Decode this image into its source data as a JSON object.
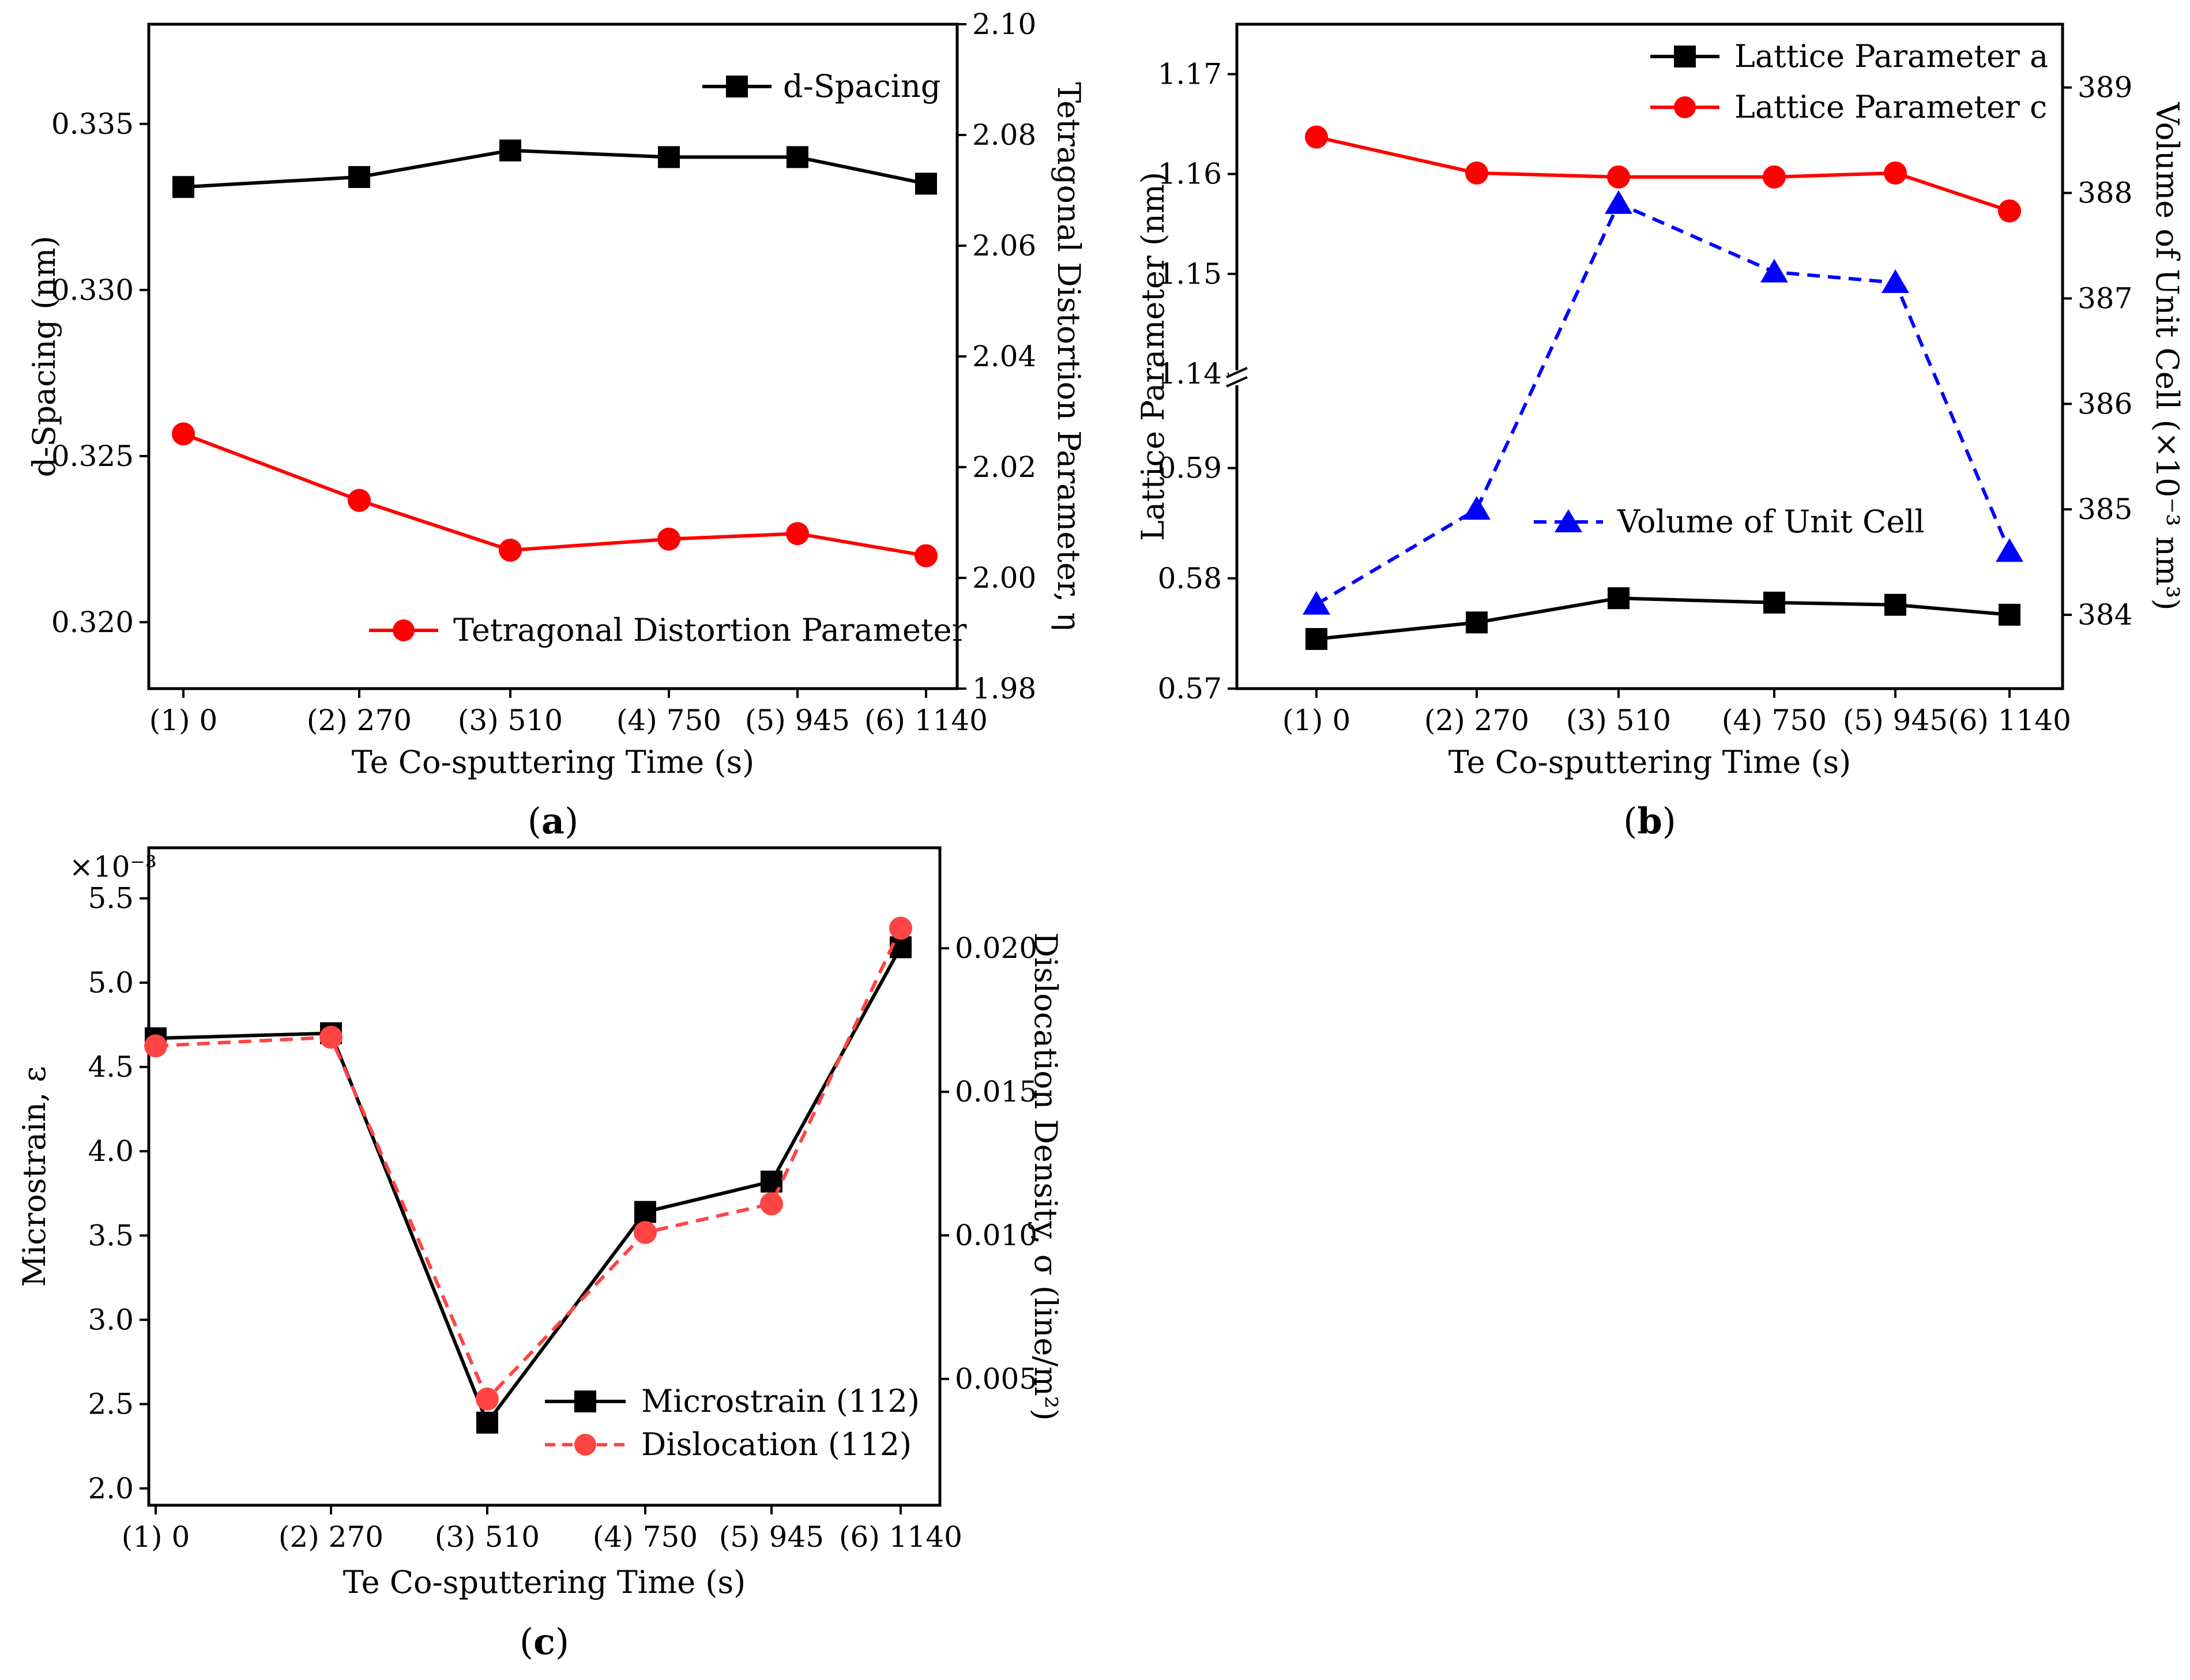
{
  "chart_data": [
    {
      "panel_label": "a",
      "type": "line",
      "categories": [
        "(1) 0",
        "(2) 270",
        "(3) 510",
        "(4) 750",
        "(5) 945",
        "(6) 1140"
      ],
      "x": [
        0,
        270,
        510,
        750,
        945,
        1140
      ],
      "xlabel": "Te Co-sputtering Time (s)",
      "ylabel_left": "d-Spacing (nm)",
      "ylabel_right": "Tetragonal Distortion Parameter, η",
      "ylim_left": [
        0.318,
        0.338
      ],
      "yticks_left": [
        "0.320",
        "0.325",
        "0.330",
        "0.335"
      ],
      "ylim_right": [
        1.98,
        2.1
      ],
      "yticks_right": [
        "1.98",
        "2.00",
        "2.02",
        "2.04",
        "2.06",
        "2.08",
        "2.10"
      ],
      "legend_position": "top-right / bottom-right",
      "series": [
        {
          "name": "d-Spacing",
          "axis": "left",
          "color": "#000000",
          "marker": "square",
          "line": "solid",
          "values": [
            0.3331,
            0.3334,
            0.3342,
            0.334,
            0.334,
            0.3332
          ]
        },
        {
          "name": "Tetragonal Distortion Parameter",
          "axis": "right",
          "color": "#ff0000",
          "marker": "circle",
          "line": "solid",
          "values": [
            2.026,
            2.014,
            2.005,
            2.007,
            2.008,
            2.004
          ]
        }
      ]
    },
    {
      "panel_label": "b",
      "type": "line",
      "categories": [
        "(1) 0",
        "(2) 270",
        "(3) 510",
        "(4) 750",
        "(5) 945",
        "(6) 1140"
      ],
      "x": [
        0,
        270,
        510,
        750,
        945,
        1140
      ],
      "xlabel": "Te Co-sputtering Time (s)",
      "ylabel_left": "Lattice Parameter (nm)",
      "ylabel_right": "Volume of Unit Cell (×10⁻³ nm³)",
      "ylim_left_lower": [
        0.57,
        0.595
      ],
      "ylim_left_upper": [
        1.14,
        1.175
      ],
      "yticks_left": [
        "0.57",
        "0.58",
        "0.59",
        "1.14",
        "1.15",
        "1.16",
        "1.17"
      ],
      "axis_break": true,
      "ylim_right": [
        383.3,
        389.6
      ],
      "yticks_right": [
        "384",
        "385",
        "386",
        "387",
        "388",
        "389"
      ],
      "legend_position": "top-right / center-right",
      "series": [
        {
          "name": "Lattice Parameter a",
          "axis": "left",
          "color": "#000000",
          "marker": "square",
          "line": "solid",
          "values": [
            0.5745,
            0.576,
            0.5782,
            0.5778,
            0.5776,
            0.5767
          ]
        },
        {
          "name": "Lattice Parameter c",
          "axis": "left",
          "color": "#ff0000",
          "marker": "circle",
          "line": "solid",
          "values": [
            1.1637,
            1.1601,
            1.1597,
            1.1597,
            1.1601,
            1.1563
          ]
        },
        {
          "name": "Volume of Unit Cell",
          "axis": "right",
          "color": "#0000ff",
          "marker": "triangle",
          "line": "dashed",
          "values": [
            384.1,
            385.0,
            387.9,
            387.25,
            387.15,
            384.6
          ]
        }
      ]
    },
    {
      "panel_label": "c",
      "type": "line",
      "categories": [
        "(1) 0",
        "(2) 270",
        "(3) 510",
        "(4) 750",
        "(5) 945",
        "(6) 1140"
      ],
      "x": [
        0,
        270,
        510,
        750,
        945,
        1140
      ],
      "xlabel": "Te Co-sputtering Time (s)",
      "ylabel_left": "Microstrain, ε",
      "ylabel_right": "Dislocation Density, σ (line/m²)",
      "ylim_left": [
        1.9,
        5.8
      ],
      "yticks_left": [
        "2.0",
        "2.5",
        "3.0",
        "3.5",
        "4.0",
        "4.5",
        "5.0",
        "5.5"
      ],
      "y_multiplier_left": "×10⁻³",
      "ylim_right": [
        0.0006,
        0.0235
      ],
      "yticks_right": [
        "0.005",
        "0.010",
        "0.015",
        "0.020"
      ],
      "legend_position": "bottom-right",
      "series": [
        {
          "name": "Microstrain (112)",
          "axis": "left",
          "color": "#000000",
          "marker": "square",
          "line": "solid",
          "values": [
            4.67,
            4.7,
            2.39,
            3.64,
            3.82,
            5.21
          ]
        },
        {
          "name": "Dislocation (112)",
          "axis": "right",
          "color": "#ff4444",
          "marker": "circle",
          "line": "dashed",
          "values": [
            0.0166,
            0.0169,
            0.0043,
            0.0101,
            0.0111,
            0.0207
          ]
        }
      ]
    }
  ]
}
